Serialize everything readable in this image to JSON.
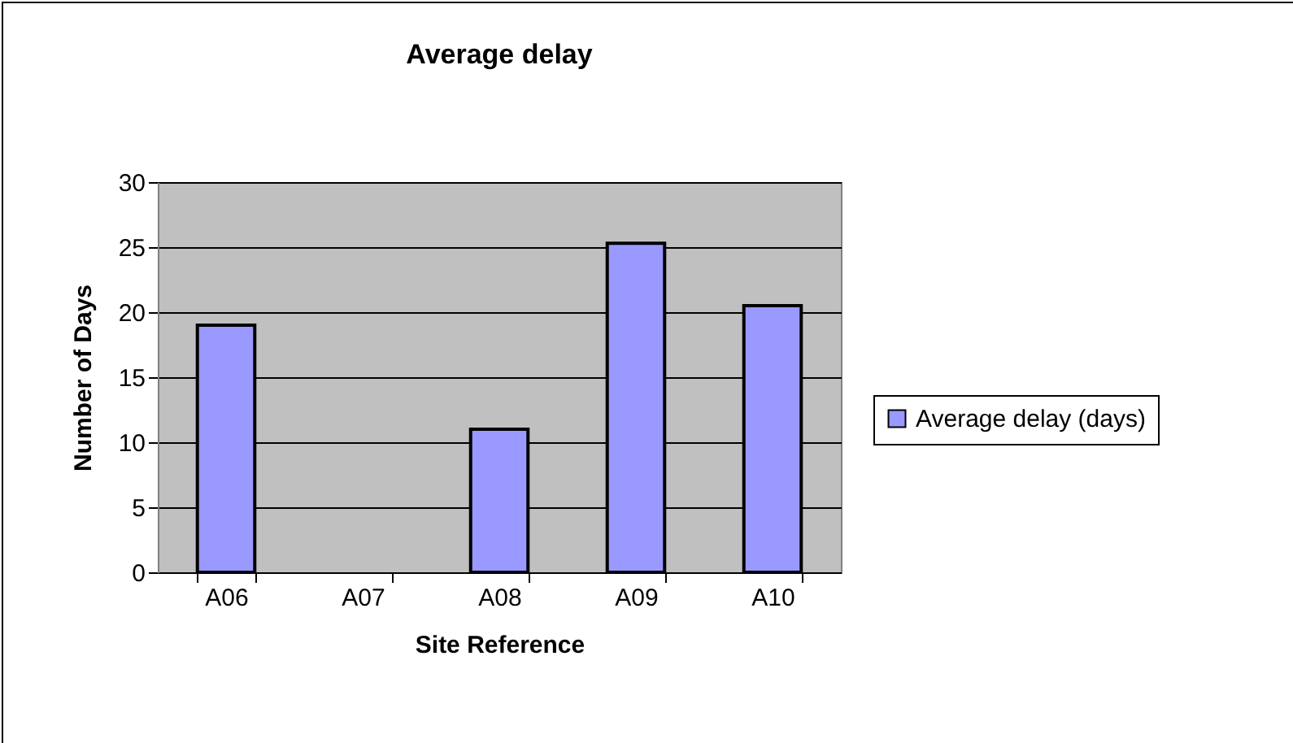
{
  "chart_data": {
    "type": "bar",
    "title": "Average delay",
    "xlabel": "Site Reference",
    "ylabel": "Number of Days",
    "categories": [
      "A06",
      "A07",
      "A08",
      "A09",
      "A10"
    ],
    "series": [
      {
        "name": "Average delay (days)",
        "color": "#9999ff",
        "values": [
          19.0,
          null,
          11.0,
          25.3,
          20.5
        ]
      }
    ],
    "ylim": [
      0,
      30
    ],
    "yticks": [
      0,
      5,
      10,
      15,
      20,
      25,
      30
    ],
    "grid": "y",
    "legend": "right"
  }
}
